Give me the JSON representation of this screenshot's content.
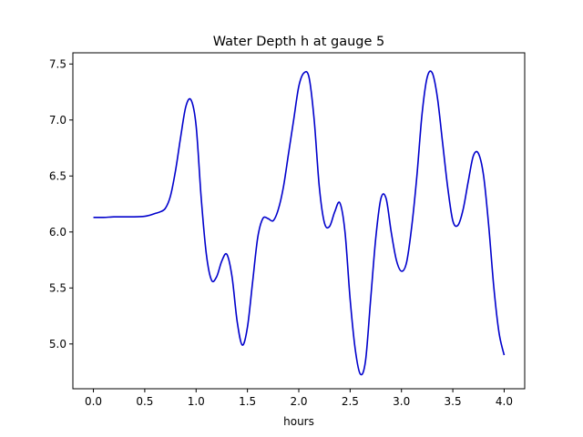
{
  "chart_data": {
    "type": "line",
    "title": "Water Depth h at gauge 5",
    "xlabel": "hours",
    "ylabel": "",
    "xlim": [
      -0.2,
      4.2
    ],
    "ylim": [
      4.6,
      7.6
    ],
    "x_ticks": [
      "0.0",
      "0.5",
      "1.0",
      "1.5",
      "2.0",
      "2.5",
      "3.0",
      "3.5",
      "4.0"
    ],
    "y_ticks": [
      "5.0",
      "5.5",
      "6.0",
      "6.5",
      "7.0",
      "7.5"
    ],
    "grid": false,
    "colors": {
      "line": "#0000cc"
    },
    "series": [
      {
        "x": [
          0.0,
          0.1,
          0.2,
          0.3,
          0.4,
          0.5,
          0.55,
          0.6,
          0.65,
          0.7,
          0.75,
          0.8,
          0.85,
          0.9,
          0.95,
          1.0,
          1.05,
          1.1,
          1.15,
          1.2,
          1.25,
          1.3,
          1.35,
          1.4,
          1.45,
          1.5,
          1.55,
          1.6,
          1.65,
          1.7,
          1.75,
          1.8,
          1.85,
          1.9,
          1.95,
          2.0,
          2.05,
          2.1,
          2.15,
          2.2,
          2.25,
          2.3,
          2.35,
          2.4,
          2.45,
          2.5,
          2.55,
          2.6,
          2.65,
          2.7,
          2.75,
          2.8,
          2.85,
          2.9,
          2.95,
          3.0,
          3.05,
          3.1,
          3.15,
          3.2,
          3.25,
          3.3,
          3.35,
          3.4,
          3.45,
          3.5,
          3.55,
          3.6,
          3.65,
          3.7,
          3.75,
          3.8,
          3.85,
          3.9,
          3.95,
          4.0
        ],
        "values": [
          6.13,
          6.13,
          6.135,
          6.135,
          6.135,
          6.14,
          6.15,
          6.165,
          6.18,
          6.21,
          6.32,
          6.55,
          6.85,
          7.12,
          7.18,
          6.95,
          6.3,
          5.8,
          5.57,
          5.6,
          5.74,
          5.8,
          5.6,
          5.2,
          4.99,
          5.15,
          5.55,
          5.95,
          6.12,
          6.12,
          6.1,
          6.2,
          6.4,
          6.7,
          7.0,
          7.3,
          7.42,
          7.38,
          7.0,
          6.4,
          6.08,
          6.05,
          6.18,
          6.26,
          6.0,
          5.4,
          4.95,
          4.73,
          4.85,
          5.4,
          5.95,
          6.3,
          6.3,
          6.0,
          5.75,
          5.65,
          5.73,
          6.05,
          6.5,
          7.05,
          7.38,
          7.42,
          7.2,
          6.8,
          6.4,
          6.1,
          6.06,
          6.2,
          6.45,
          6.68,
          6.7,
          6.5,
          6.05,
          5.5,
          5.1,
          4.9
        ]
      }
    ]
  }
}
